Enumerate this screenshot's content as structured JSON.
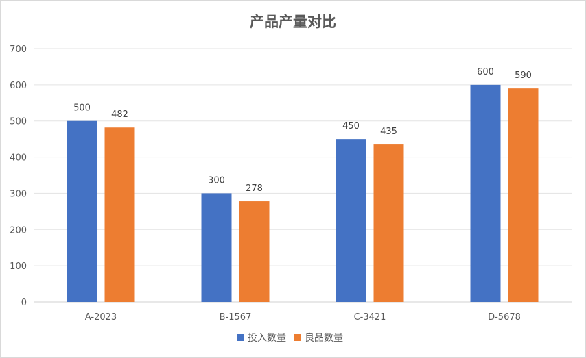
{
  "chart_data": {
    "type": "bar",
    "title": "产品产量对比",
    "xlabel": "",
    "ylabel": "",
    "categories": [
      "A-2023",
      "B-1567",
      "C-3421",
      "D-5678"
    ],
    "series": [
      {
        "name": "投入数量",
        "values": [
          500,
          300,
          450,
          600
        ],
        "color": "#4472C4"
      },
      {
        "name": "良品数量",
        "values": [
          482,
          278,
          435,
          590
        ],
        "color": "#ED7D31"
      }
    ],
    "ylim": [
      0,
      700
    ],
    "yticks": [
      0,
      100,
      200,
      300,
      400,
      500,
      600,
      700
    ],
    "grid": true,
    "data_labels": true,
    "legend": "bottom"
  }
}
